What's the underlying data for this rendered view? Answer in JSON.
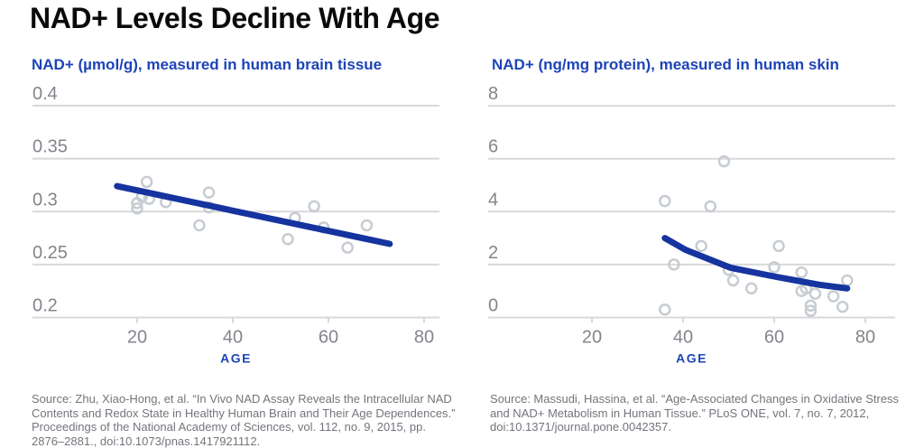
{
  "title": "NAD+ Levels Decline With Age",
  "colors": {
    "background": "#ffffff",
    "title_text": "#0b0b0b",
    "accent_blue": "#1d44b8",
    "trend_blue": "#16349f",
    "gridline": "#d8d8d8",
    "tick_label": "#85848c",
    "point_stroke": "#c6ccd2",
    "source_text": "#75747d"
  },
  "chart_data": [
    {
      "type": "scatter",
      "title": "NAD+ (µmol/g), measured in human brain tissue",
      "xlabel": "AGE",
      "ylabel": "NAD+ (µmol/g)",
      "xlim": [
        12,
        83
      ],
      "ylim": [
        0.2,
        0.4
      ],
      "grid": true,
      "x_ticks": [
        20,
        40,
        60,
        80
      ],
      "y_ticks": [
        {
          "value": 0.4,
          "label": "0.4"
        },
        {
          "value": 0.35,
          "label": "0.35"
        },
        {
          "value": 0.3,
          "label": "0.3"
        },
        {
          "value": 0.25,
          "label": "0.25"
        },
        {
          "value": 0.2,
          "label": "0.2"
        }
      ],
      "points": [
        [
          22,
          0.328
        ],
        [
          21,
          0.314
        ],
        [
          22.5,
          0.312
        ],
        [
          20,
          0.308
        ],
        [
          20,
          0.303
        ],
        [
          26,
          0.309
        ],
        [
          35,
          0.318
        ],
        [
          35,
          0.304
        ],
        [
          33,
          0.287
        ],
        [
          51.5,
          0.274
        ],
        [
          53,
          0.294
        ],
        [
          57,
          0.305
        ],
        [
          59,
          0.285
        ],
        [
          64,
          0.266
        ],
        [
          68,
          0.287
        ]
      ],
      "trend": {
        "shape": "line",
        "points": [
          [
            15.8,
            0.324
          ],
          [
            72.8,
            0.2695
          ]
        ]
      }
    },
    {
      "type": "scatter",
      "title": "NAD+ (ng/mg protein), measured in human skin",
      "xlabel": "AGE",
      "ylabel": "NAD+ (ng/mg protein)",
      "xlim": [
        12,
        85
      ],
      "ylim": [
        0,
        8
      ],
      "grid": true,
      "x_ticks": [
        20,
        40,
        60,
        80
      ],
      "y_ticks": [
        {
          "value": 8,
          "label": "8"
        },
        {
          "value": 6,
          "label": "6"
        },
        {
          "value": 4,
          "label": "4"
        },
        {
          "value": 2,
          "label": "2"
        },
        {
          "value": 0,
          "label": "0"
        }
      ],
      "points": [
        [
          36,
          4.4
        ],
        [
          49,
          5.9
        ],
        [
          46,
          4.2
        ],
        [
          44,
          2.7
        ],
        [
          61,
          2.7
        ],
        [
          38,
          2.0
        ],
        [
          50,
          1.8
        ],
        [
          51,
          1.4
        ],
        [
          55,
          1.1
        ],
        [
          60,
          1.9
        ],
        [
          66,
          1.7
        ],
        [
          66,
          1.0
        ],
        [
          67,
          1.1
        ],
        [
          69,
          0.9
        ],
        [
          73,
          0.8
        ],
        [
          76,
          1.4
        ],
        [
          75,
          0.4
        ],
        [
          68,
          0.45
        ],
        [
          68,
          0.25
        ],
        [
          36,
          0.3
        ]
      ],
      "trend": {
        "shape": "curve",
        "points": [
          [
            36,
            3.0
          ],
          [
            40.5,
            2.56
          ],
          [
            50.4,
            1.88
          ],
          [
            60.3,
            1.54
          ],
          [
            70.1,
            1.23
          ],
          [
            76,
            1.1
          ]
        ]
      }
    }
  ],
  "sources": [
    "Source: Zhu, Xiao-Hong, et al. “In Vivo NAD Assay Reveals the Intracellular NAD Contents and Redox State in Healthy Human Brain and Their Age Dependences.” Proceedings of the National Academy of Sciences, vol. 112, no. 9, 2015, pp. 2876–2881., doi:10.1073/pnas.1417921112.",
    "Source: Massudi, Hassina, et al. “Age-Associated Changes in Oxidative Stress and NAD+ Metabolism in Human Tissue.” PLoS ONE, vol. 7, no. 7, 2012, doi:10.1371/journal.pone.0042357."
  ]
}
